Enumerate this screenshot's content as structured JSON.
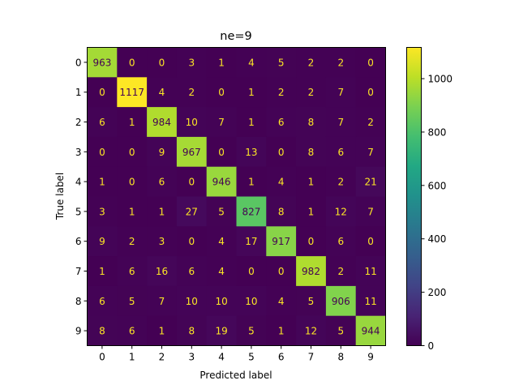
{
  "chart_data": {
    "type": "heatmap",
    "title": "ne=9",
    "xlabel": "Predicted label",
    "ylabel": "True label",
    "x_categories": [
      "0",
      "1",
      "2",
      "3",
      "4",
      "5",
      "6",
      "7",
      "8",
      "9"
    ],
    "y_categories": [
      "0",
      "1",
      "2",
      "3",
      "4",
      "5",
      "6",
      "7",
      "8",
      "9"
    ],
    "values": [
      [
        963,
        0,
        0,
        3,
        1,
        4,
        5,
        2,
        2,
        0
      ],
      [
        0,
        1117,
        4,
        2,
        0,
        1,
        2,
        2,
        7,
        0
      ],
      [
        6,
        1,
        984,
        10,
        7,
        1,
        6,
        8,
        7,
        2
      ],
      [
        0,
        0,
        9,
        967,
        0,
        13,
        0,
        8,
        6,
        7
      ],
      [
        1,
        0,
        6,
        0,
        946,
        1,
        4,
        1,
        2,
        21
      ],
      [
        3,
        1,
        1,
        27,
        5,
        827,
        8,
        1,
        12,
        7
      ],
      [
        9,
        2,
        3,
        0,
        4,
        17,
        917,
        0,
        6,
        0
      ],
      [
        1,
        6,
        16,
        6,
        4,
        0,
        0,
        982,
        2,
        11
      ],
      [
        6,
        5,
        7,
        10,
        10,
        10,
        4,
        5,
        906,
        11
      ],
      [
        8,
        6,
        1,
        8,
        19,
        5,
        1,
        12,
        5,
        944
      ]
    ],
    "colormap": "viridis",
    "value_range": [
      0,
      1117
    ],
    "colorbar_ticks": [
      0,
      200,
      400,
      600,
      800,
      1000
    ],
    "grid": false
  }
}
